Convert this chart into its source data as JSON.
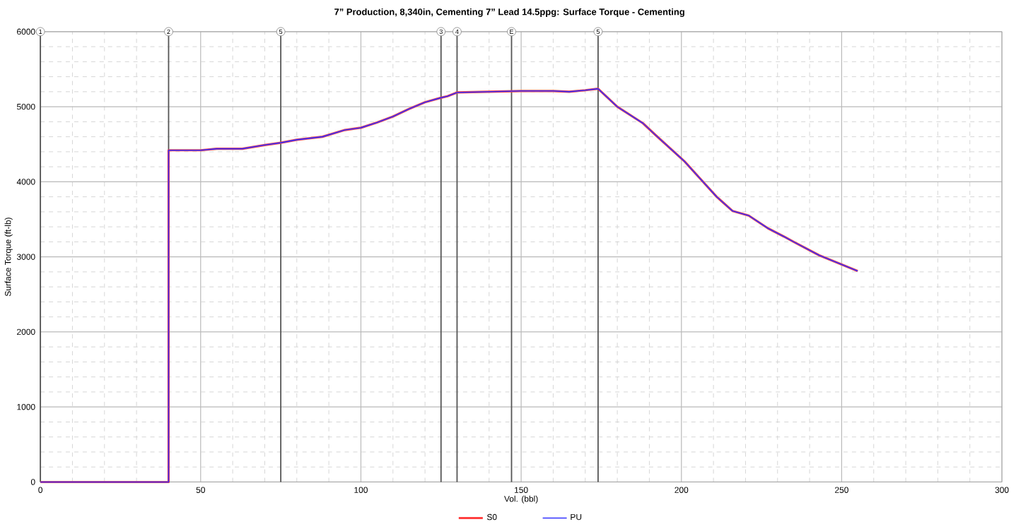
{
  "chart_data": {
    "type": "line",
    "title": "7” Production, 8,340in, Cementing 7” Lead 14.5ppg: Surface Torque - Cementing",
    "xlabel": "Vol. (bbl)",
    "ylabel": "Surface Torque (ft-lb)",
    "x": [
      0,
      40,
      40,
      45,
      50,
      55,
      63,
      70,
      75,
      80,
      88,
      95,
      100,
      105,
      110,
      115,
      120,
      125,
      127,
      130,
      140,
      150,
      160,
      165,
      170,
      174,
      180,
      188,
      192,
      201,
      211,
      216,
      221,
      227,
      232,
      235,
      243,
      255
    ],
    "series": [
      {
        "name": "S0",
        "color": "#ff4040",
        "values": [
          0,
          0,
          4420,
          4420,
          4420,
          4440,
          4440,
          4490,
          4520,
          4560,
          4600,
          4690,
          4720,
          4790,
          4870,
          4970,
          5060,
          5120,
          5140,
          5190,
          5200,
          5210,
          5210,
          5200,
          5220,
          5240,
          5000,
          4780,
          4620,
          4270,
          3800,
          3610,
          3550,
          3380,
          3270,
          3200,
          3020,
          2810
        ]
      },
      {
        "name": "PU",
        "color": "#3030ff",
        "values": [
          0,
          0,
          4420,
          4420,
          4420,
          4440,
          4440,
          4490,
          4520,
          4560,
          4600,
          4690,
          4720,
          4790,
          4870,
          4970,
          5060,
          5120,
          5140,
          5190,
          5200,
          5210,
          5210,
          5200,
          5220,
          5240,
          5000,
          4780,
          4620,
          4270,
          3800,
          3610,
          3550,
          3380,
          3270,
          3200,
          3020,
          2810
        ]
      }
    ],
    "xlim": [
      0,
      300
    ],
    "ylim": [
      0,
      6000
    ],
    "xticks": [
      0,
      50,
      100,
      150,
      200,
      250,
      300
    ],
    "yticks": [
      0,
      1000,
      2000,
      3000,
      4000,
      5000,
      6000
    ],
    "ref_lines": [
      {
        "axis": "x",
        "value": 0,
        "color": "#555555"
      },
      {
        "axis": "x",
        "value": 40,
        "color": "#555555"
      },
      {
        "axis": "x",
        "value": 75,
        "color": "#555555"
      },
      {
        "axis": "x",
        "value": 125,
        "color": "#555555"
      },
      {
        "axis": "x",
        "value": 130,
        "color": "#555555"
      },
      {
        "axis": "x",
        "value": 147,
        "color": "#555555"
      },
      {
        "axis": "x",
        "value": 174,
        "color": "#555555"
      }
    ],
    "annotations": [
      {
        "text": "1",
        "x": 0,
        "y": 6000
      },
      {
        "text": "2",
        "x": 40,
        "y": 6000
      },
      {
        "text": "5",
        "x": 75,
        "y": 6000
      },
      {
        "text": "3",
        "x": 125,
        "y": 6000
      },
      {
        "text": "4",
        "x": 130,
        "y": 6000
      },
      {
        "text": "E",
        "x": 147,
        "y": 6000
      },
      {
        "text": "5",
        "x": 174,
        "y": 6000
      }
    ],
    "grid": true,
    "legend": "bottom",
    "marker": "none",
    "line_style": "solid"
  }
}
